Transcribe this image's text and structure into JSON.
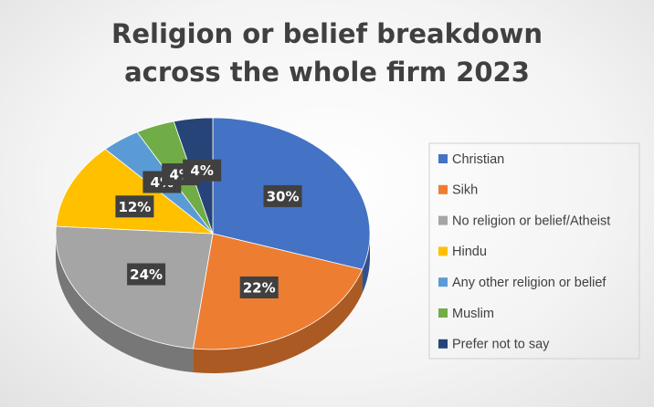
{
  "chart_data": {
    "type": "pie3d",
    "title": "Religion or belief breakdown across the whole firm 2023",
    "categories": [
      "Christian",
      "Sikh",
      "No religion or belief/Atheist",
      "Hindu",
      "Any other religion or belief",
      "Muslim",
      "Prefer not to say"
    ],
    "values": [
      30,
      22,
      24,
      12,
      4,
      4,
      4
    ],
    "value_labels": [
      "30%",
      "22%",
      "24%",
      "12%",
      "4%",
      "4%",
      "4%"
    ],
    "colors": [
      "#4472c4",
      "#ed7d31",
      "#a5a5a5",
      "#ffc000",
      "#5b9bd5",
      "#70ad47",
      "#264478"
    ],
    "legend": "right"
  }
}
